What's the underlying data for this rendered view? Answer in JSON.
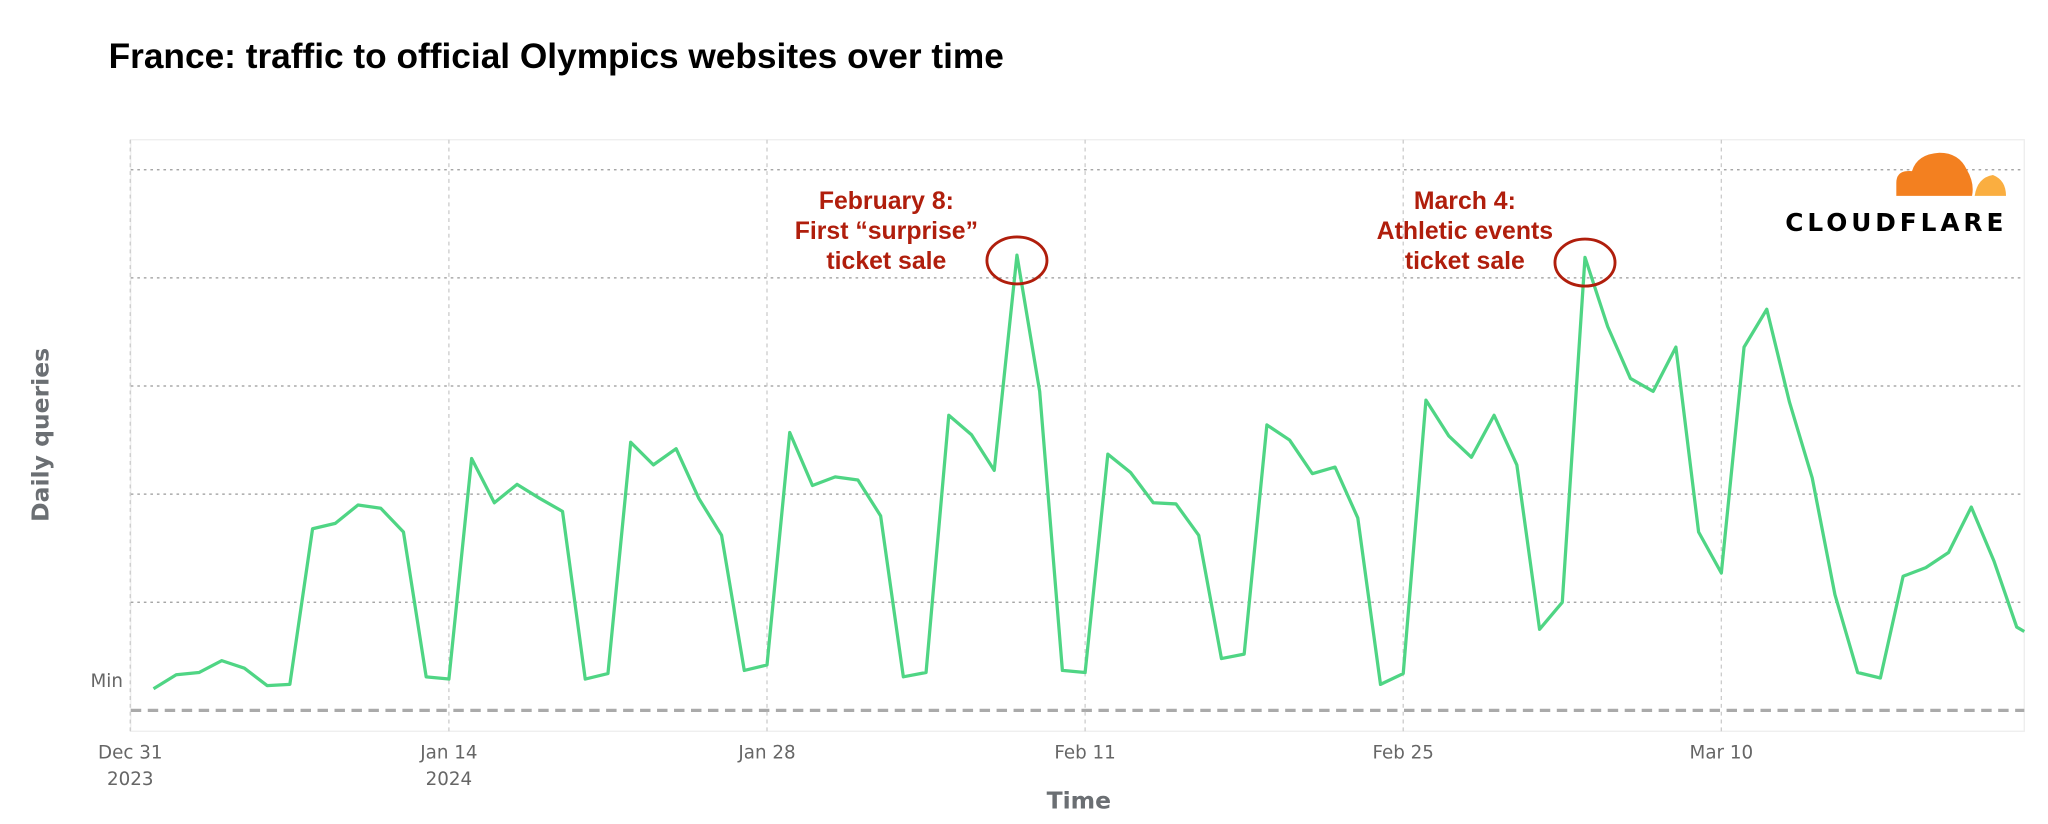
{
  "chart_data": {
    "type": "line",
    "title": "France: traffic to official Olympics websites over time",
    "xlabel": "Time",
    "ylabel": "Daily queries",
    "y_tick_labels": [
      "Min"
    ],
    "ylim": [
      0,
      5
    ],
    "grid": true,
    "x_start_date": "2024-01-01",
    "x_ticks": [
      {
        "day": -1,
        "label": "Dec 31",
        "sublabel": "2023"
      },
      {
        "day": 13,
        "label": "Jan 14",
        "sublabel": "2024"
      },
      {
        "day": 27,
        "label": "Jan 28",
        "sublabel": ""
      },
      {
        "day": 41,
        "label": "Feb 11",
        "sublabel": ""
      },
      {
        "day": 55,
        "label": "Feb 25",
        "sublabel": ""
      },
      {
        "day": 69,
        "label": "Mar 10",
        "sublabel": ""
      }
    ],
    "series": [
      {
        "name": "Daily queries",
        "color": "#4fd584",
        "values": [
          0.2,
          0.33,
          0.35,
          0.46,
          0.39,
          0.23,
          0.24,
          1.68,
          1.73,
          1.9,
          1.87,
          1.65,
          0.31,
          0.29,
          2.33,
          1.92,
          2.09,
          1.96,
          1.84,
          0.29,
          0.34,
          2.48,
          2.27,
          2.42,
          1.96,
          1.62,
          0.37,
          0.42,
          2.57,
          2.08,
          2.16,
          2.13,
          1.8,
          0.31,
          0.35,
          2.73,
          2.55,
          2.22,
          4.21,
          2.95,
          0.37,
          0.35,
          2.37,
          2.2,
          1.92,
          1.91,
          1.62,
          0.48,
          0.52,
          2.64,
          2.5,
          2.19,
          2.25,
          1.78,
          0.24,
          0.34,
          2.87,
          2.54,
          2.34,
          2.73,
          2.27,
          0.75,
          1.0,
          4.19,
          3.55,
          3.07,
          2.95,
          3.36,
          1.65,
          1.27,
          3.36,
          3.71,
          2.85,
          2.15,
          1.07,
          0.35,
          0.3,
          1.24,
          1.32,
          1.46,
          1.88,
          1.38,
          0.77,
          0.73
        ]
      }
    ],
    "annotations": [
      {
        "day": 38,
        "lines": [
          "February 8:",
          "First “surprise”",
          "ticket sale"
        ]
      },
      {
        "day": 63,
        "lines": [
          "March 4:",
          "Athletic events",
          "ticket sale"
        ]
      }
    ]
  },
  "logo": {
    "text": "CLOUDFLARE",
    "colors": {
      "orange": "#f38020",
      "light": "#faae40"
    }
  },
  "colors": {
    "annotation": "#b01e0c",
    "grid": "#aaaaaa"
  }
}
